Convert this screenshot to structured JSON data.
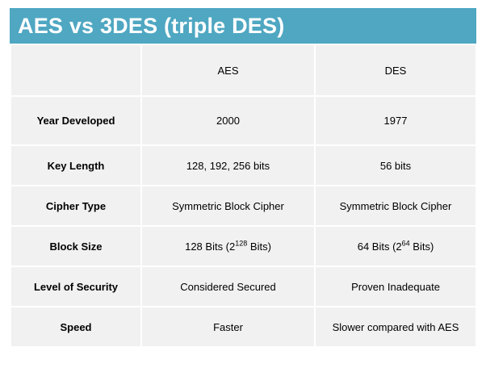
{
  "title": "AES vs 3DES (triple DES)",
  "colors": {
    "title_bar": "#4fa7c2",
    "cell_background": "#f1f1f1"
  },
  "table": {
    "headers": {
      "empty": "",
      "aes": "AES",
      "des": "DES"
    },
    "rows": [
      {
        "label": "Year Developed",
        "aes": "2000",
        "des": "1977"
      },
      {
        "label": "Key Length",
        "aes": "128, 192, 256 bits",
        "des": "56 bits"
      },
      {
        "label": "Cipher Type",
        "aes": "Symmetric Block Cipher",
        "des": "Symmetric Block Cipher"
      },
      {
        "label": "Block Size",
        "aes_prefix": "128 Bits (2",
        "aes_exp": "128",
        "aes_suffix": " Bits)",
        "des_prefix": "64 Bits (2",
        "des_exp": "64",
        "des_suffix": " Bits)"
      },
      {
        "label": "Level of Security",
        "aes": "Considered Secured",
        "des": "Proven Inadequate"
      },
      {
        "label": "Speed",
        "aes": "Faster",
        "des": "Slower compared with AES"
      }
    ]
  }
}
